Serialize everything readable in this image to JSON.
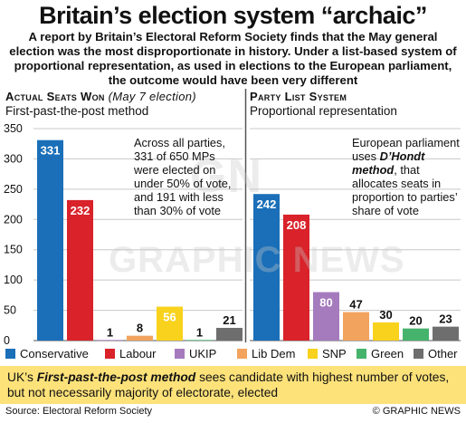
{
  "title": "Britain’s election system “archaic”",
  "intro": "A report by Britain’s Electoral Reform Society finds that the May general election was the most disproportionate in history. Under a list-based system of proportional representation, as used in elections to the European parliament, the outcome would have been very different",
  "left": {
    "heading": "Actual Seats Won",
    "heading_note": "(May 7 election)",
    "subheading": "First-past-the-post method",
    "note": "Across all parties, 331 of 650 MPs were elected on under 50% of vote, and 191 with less than 30% of vote"
  },
  "right": {
    "heading": "Party List System",
    "subheading": "Proportional representation",
    "note_a": "European parliament uses ",
    "note_method": "D’Hondt method",
    "note_b": ", that allocates seats in proportion to parties’ share of vote"
  },
  "footer_a": "UK’s ",
  "footer_method": "First-past-the-post method",
  "footer_b": " sees candidate with highest number of votes, but not necessarily majority of electorate, elected",
  "source": "Source: Electoral Reform Society",
  "credit": "© GRAPHIC NEWS",
  "watermark": "GRAPHIC NEWS",
  "chart_data": [
    {
      "type": "bar",
      "categories": [
        "Conservative",
        "Labour",
        "UKIP",
        "Lib Dem",
        "SNP",
        "Green",
        "Other"
      ],
      "values": [
        331,
        232,
        1,
        8,
        56,
        1,
        21
      ],
      "ylim": [
        0,
        350
      ],
      "yticks": [
        0,
        50,
        100,
        150,
        200,
        250,
        300,
        350
      ],
      "grid": true
    },
    {
      "type": "bar",
      "categories": [
        "Conservative",
        "Labour",
        "UKIP",
        "Lib Dem",
        "SNP",
        "Green",
        "Other"
      ],
      "values": [
        242,
        208,
        80,
        47,
        30,
        20,
        23
      ],
      "ylim": [
        0,
        350
      ],
      "grid": true
    }
  ],
  "colors": {
    "Conservative": "#1a6fb8",
    "Labour": "#d9222a",
    "UKIP": "#a57bbd",
    "Lib Dem": "#f2a35e",
    "SNP": "#f8d21c",
    "Green": "#45b36b",
    "Other": "#6e6e6e"
  }
}
